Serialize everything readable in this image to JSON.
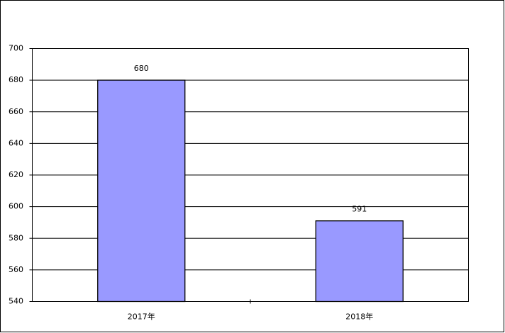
{
  "chart_data": {
    "type": "bar",
    "categories": [
      "2017年",
      "2018年"
    ],
    "values": [
      680,
      591
    ],
    "color": "#9999ff",
    "ylim": [
      540,
      700
    ],
    "yticks": [
      540,
      560,
      580,
      600,
      620,
      640,
      660,
      680,
      700
    ],
    "grid": true
  }
}
